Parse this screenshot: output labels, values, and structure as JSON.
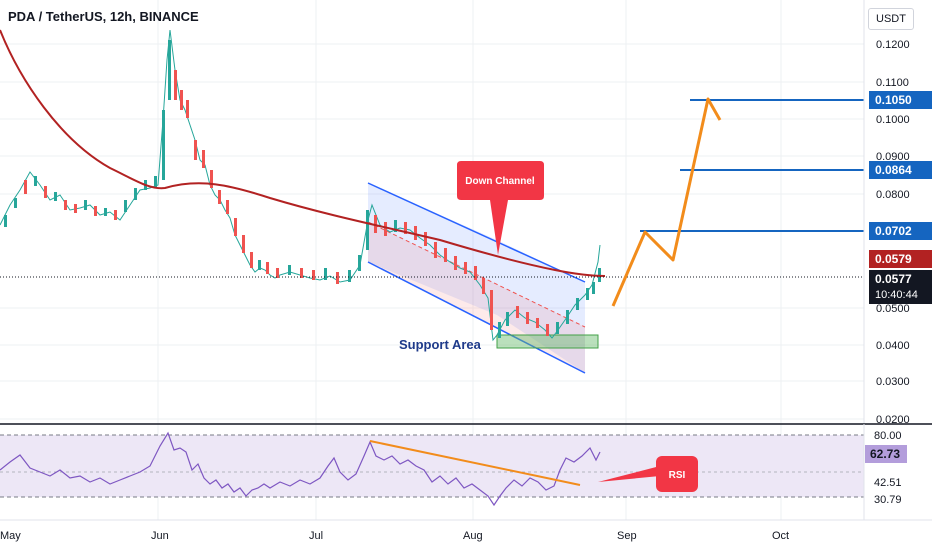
{
  "header": {
    "symbol": "PDA / TetherUS, 12h, BINANCE",
    "currency": "USDT"
  },
  "price_axis": {
    "ticks": [
      "0.1200",
      "0.1100",
      "0.1000",
      "0.0900",
      "0.0800",
      "0.0500",
      "0.0400",
      "0.0300",
      "0.0200"
    ],
    "labels": {
      "target_3": "0.1050",
      "target_2": "0.0864",
      "target_1": "0.0702",
      "ma_value": "0.0579",
      "last_price": "0.0577",
      "countdown": "10:40:44"
    }
  },
  "rsi_axis": {
    "ticks": [
      "80.00",
      "42.51",
      "30.79"
    ],
    "current": "62.73"
  },
  "time_axis": {
    "labels": [
      "May",
      "Jun",
      "Jul",
      "Aug",
      "Sep",
      "Oct"
    ]
  },
  "annotations": {
    "down_channel": "Down Channel",
    "support_area": "Support Area",
    "rsi": "RSI"
  },
  "colors": {
    "up": "#26a69a",
    "down": "#ef5350",
    "ma": "#b22222",
    "target_line": "#1565c0",
    "projection": "#f28c1b",
    "channel": "#2962ff",
    "support_fill": "#66bb6a",
    "rsi_line": "#7e57c2",
    "rsi_band": "#ede7f6",
    "callout": "#f23645",
    "last_price_bg": "#131722"
  }
}
